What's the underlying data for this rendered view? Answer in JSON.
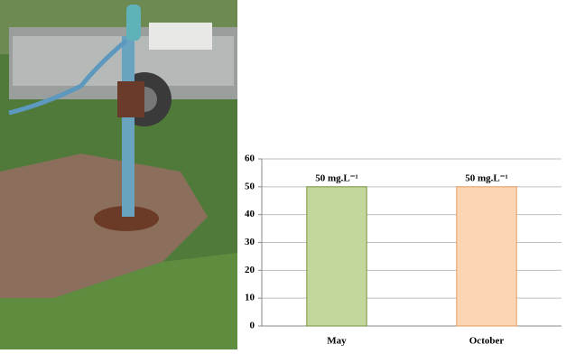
{
  "chart_data": {
    "type": "bar",
    "categories": [
      "May",
      "October"
    ],
    "values": [
      50,
      50
    ],
    "value_labels": [
      "50 mg.L⁻¹",
      "50 mg.L⁻¹"
    ],
    "colors": [
      "#c3d69b",
      "#fcd5b5"
    ],
    "edge_colors": [
      "#77933c",
      "#e59c5c"
    ],
    "ylim": [
      0,
      60
    ],
    "yticks": [
      0,
      10,
      20,
      30,
      40,
      50,
      60
    ],
    "grid": true
  }
}
